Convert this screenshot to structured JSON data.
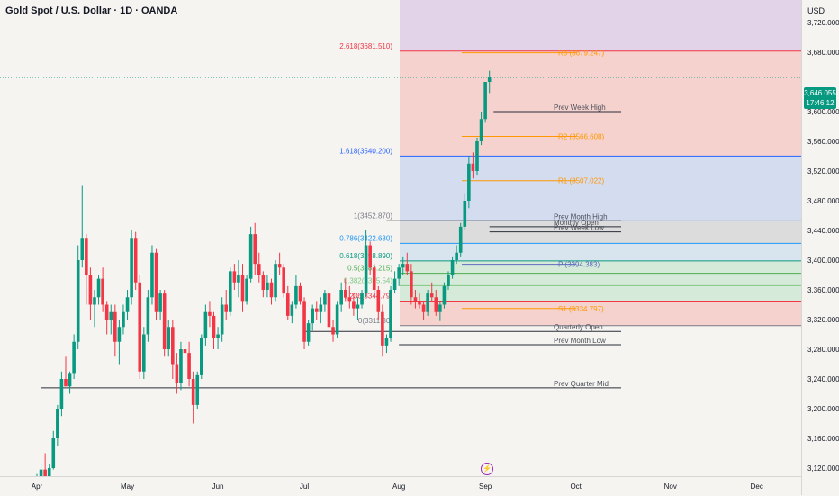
{
  "title": "Gold Spot / U.S. Dollar · 1D · OANDA",
  "currency": "USD",
  "price_badge": {
    "price": "3,646.055",
    "countdown": "17:46:12"
  },
  "colors": {
    "up": "#089981",
    "down": "#f23645",
    "purple_zone": "#e2d3e8",
    "red_zone": "#f5d2cd",
    "blue_zone": "#d4dcf0",
    "gray_zone": "#dcdcdc",
    "green_zone": "#d6ead9",
    "lightgray": "#e4e4e4"
  },
  "chart_data": {
    "type": "candlestick",
    "title": "Gold Spot / U.S. Dollar · 1D · OANDA",
    "ylim": [
      3100,
      3760
    ],
    "yticks": [
      {
        "v": 3720,
        "label": "3,720.000"
      },
      {
        "v": 3680,
        "label": "3,680.000"
      },
      {
        "v": 3600,
        "label": "3,600.000"
      },
      {
        "v": 3560,
        "label": "3,560.000"
      },
      {
        "v": 3520,
        "label": "3,520.000"
      },
      {
        "v": 3480,
        "label": "3,480.000"
      },
      {
        "v": 3440,
        "label": "3,440.000"
      },
      {
        "v": 3400,
        "label": "3,400.000"
      },
      {
        "v": 3360,
        "label": "3,360.000"
      },
      {
        "v": 3320,
        "label": "3,320.000"
      },
      {
        "v": 3280,
        "label": "3,280.000"
      },
      {
        "v": 3240,
        "label": "3,240.000"
      },
      {
        "v": 3200,
        "label": "3,200.000"
      },
      {
        "v": 3160,
        "label": "3,160.000"
      },
      {
        "v": 3120,
        "label": "3,120.000"
      }
    ],
    "xticks": [
      {
        "i": 0,
        "label": "Apr"
      },
      {
        "i": 22,
        "label": "May"
      },
      {
        "i": 44,
        "label": "Jun"
      },
      {
        "i": 65,
        "label": "Jul"
      },
      {
        "i": 88,
        "label": "Aug"
      },
      {
        "i": 109,
        "label": "Sep"
      },
      {
        "i": 131,
        "label": "Oct"
      },
      {
        "i": 154,
        "label": "Nov"
      },
      {
        "i": 175,
        "label": "Dec"
      }
    ],
    "candles": [
      [
        3087,
        3112,
        3080,
        3108
      ],
      [
        3108,
        3125,
        3100,
        3118
      ],
      [
        3118,
        3140,
        3110,
        3105
      ],
      [
        3105,
        3125,
        3098,
        3120
      ],
      [
        3120,
        3170,
        3118,
        3160
      ],
      [
        3160,
        3205,
        3150,
        3200
      ],
      [
        3200,
        3250,
        3190,
        3240
      ],
      [
        3240,
        3270,
        3230,
        3230
      ],
      [
        3230,
        3250,
        3220,
        3248
      ],
      [
        3248,
        3300,
        3240,
        3290
      ],
      [
        3290,
        3420,
        3280,
        3400
      ],
      [
        3400,
        3500,
        3390,
        3430
      ],
      [
        3430,
        3435,
        3340,
        3380
      ],
      [
        3380,
        3390,
        3320,
        3340
      ],
      [
        3340,
        3360,
        3310,
        3350
      ],
      [
        3350,
        3380,
        3340,
        3375
      ],
      [
        3375,
        3390,
        3330,
        3340
      ],
      [
        3340,
        3345,
        3300,
        3320
      ],
      [
        3320,
        3340,
        3300,
        3330
      ],
      [
        3330,
        3340,
        3270,
        3290
      ],
      [
        3290,
        3320,
        3260,
        3310
      ],
      [
        3310,
        3340,
        3300,
        3330
      ],
      [
        3330,
        3360,
        3320,
        3350
      ],
      [
        3350,
        3440,
        3340,
        3430
      ],
      [
        3430,
        3438,
        3360,
        3370
      ],
      [
        3370,
        3380,
        3240,
        3250
      ],
      [
        3250,
        3310,
        3240,
        3300
      ],
      [
        3300,
        3360,
        3290,
        3350
      ],
      [
        3350,
        3420,
        3340,
        3410
      ],
      [
        3410,
        3415,
        3320,
        3330
      ],
      [
        3330,
        3360,
        3320,
        3355
      ],
      [
        3355,
        3360,
        3270,
        3280
      ],
      [
        3280,
        3320,
        3270,
        3310
      ],
      [
        3310,
        3320,
        3240,
        3260
      ],
      [
        3260,
        3275,
        3220,
        3235
      ],
      [
        3235,
        3290,
        3225,
        3280
      ],
      [
        3280,
        3300,
        3260,
        3275
      ],
      [
        3275,
        3290,
        3230,
        3240
      ],
      [
        3240,
        3250,
        3180,
        3205
      ],
      [
        3205,
        3250,
        3200,
        3245
      ],
      [
        3245,
        3300,
        3240,
        3295
      ],
      [
        3295,
        3340,
        3285,
        3330
      ],
      [
        3330,
        3345,
        3310,
        3325
      ],
      [
        3325,
        3330,
        3280,
        3295
      ],
      [
        3295,
        3310,
        3280,
        3300
      ],
      [
        3300,
        3350,
        3290,
        3340
      ],
      [
        3340,
        3360,
        3320,
        3330
      ],
      [
        3330,
        3390,
        3325,
        3385
      ],
      [
        3385,
        3395,
        3360,
        3370
      ],
      [
        3370,
        3400,
        3350,
        3380
      ],
      [
        3380,
        3395,
        3330,
        3345
      ],
      [
        3345,
        3380,
        3340,
        3375
      ],
      [
        3375,
        3445,
        3370,
        3435
      ],
      [
        3435,
        3450,
        3380,
        3395
      ],
      [
        3395,
        3410,
        3370,
        3380
      ],
      [
        3380,
        3385,
        3350,
        3360
      ],
      [
        3360,
        3380,
        3350,
        3370
      ],
      [
        3370,
        3375,
        3340,
        3350
      ],
      [
        3350,
        3400,
        3345,
        3395
      ],
      [
        3395,
        3410,
        3380,
        3390
      ],
      [
        3390,
        3395,
        3350,
        3355
      ],
      [
        3355,
        3365,
        3320,
        3325
      ],
      [
        3325,
        3345,
        3315,
        3340
      ],
      [
        3340,
        3380,
        3335,
        3365
      ],
      [
        3365,
        3370,
        3340,
        3345
      ],
      [
        3345,
        3350,
        3280,
        3290
      ],
      [
        3290,
        3320,
        3285,
        3315
      ],
      [
        3315,
        3340,
        3305,
        3335
      ],
      [
        3335,
        3345,
        3320,
        3330
      ],
      [
        3330,
        3350,
        3315,
        3340
      ],
      [
        3340,
        3360,
        3330,
        3355
      ],
      [
        3355,
        3365,
        3300,
        3310
      ],
      [
        3310,
        3320,
        3290,
        3300
      ],
      [
        3300,
        3345,
        3295,
        3340
      ],
      [
        3340,
        3370,
        3330,
        3360
      ],
      [
        3360,
        3375,
        3345,
        3350
      ],
      [
        3350,
        3365,
        3335,
        3345
      ],
      [
        3345,
        3355,
        3325,
        3335
      ],
      [
        3335,
        3350,
        3320,
        3340
      ],
      [
        3340,
        3360,
        3335,
        3355
      ],
      [
        3355,
        3440,
        3350,
        3420
      ],
      [
        3420,
        3425,
        3380,
        3390
      ],
      [
        3390,
        3395,
        3350,
        3360
      ],
      [
        3360,
        3365,
        3320,
        3330
      ],
      [
        3330,
        3340,
        3270,
        3285
      ],
      [
        3285,
        3300,
        3275,
        3295
      ],
      [
        3295,
        3365,
        3290,
        3360
      ],
      [
        3360,
        3385,
        3355,
        3375
      ],
      [
        3375,
        3395,
        3365,
        3390
      ],
      [
        3390,
        3405,
        3380,
        3395
      ],
      [
        3395,
        3410,
        3380,
        3385
      ],
      [
        3385,
        3395,
        3340,
        3350
      ],
      [
        3350,
        3360,
        3335,
        3345
      ],
      [
        3345,
        3355,
        3335,
        3340
      ],
      [
        3340,
        3345,
        3320,
        3330
      ],
      [
        3330,
        3360,
        3325,
        3355
      ],
      [
        3355,
        3370,
        3345,
        3350
      ],
      [
        3350,
        3360,
        3325,
        3330
      ],
      [
        3330,
        3345,
        3318,
        3340
      ],
      [
        3340,
        3370,
        3335,
        3365
      ],
      [
        3365,
        3385,
        3360,
        3380
      ],
      [
        3380,
        3405,
        3375,
        3400
      ],
      [
        3400,
        3420,
        3395,
        3410
      ],
      [
        3410,
        3450,
        3405,
        3445
      ],
      [
        3445,
        3490,
        3440,
        3480
      ],
      [
        3480,
        3540,
        3470,
        3530
      ],
      [
        3530,
        3545,
        3510,
        3520
      ],
      [
        3520,
        3565,
        3515,
        3560
      ],
      [
        3560,
        3600,
        3555,
        3590
      ],
      [
        3590,
        3640,
        3585,
        3640
      ],
      [
        3640,
        3655,
        3625,
        3646
      ]
    ],
    "fib_levels": [
      {
        "label": "2.618(3681.510)",
        "v": 3681.51,
        "color": "#f23645"
      },
      {
        "label": "1.618(3540.200)",
        "v": 3540.2,
        "color": "#2962ff"
      },
      {
        "label": "1(3452.870)",
        "v": 3452.87,
        "color": "#787b86"
      },
      {
        "label": "0.786(3422.630)",
        "v": 3422.63,
        "color": "#2196f3"
      },
      {
        "label": "0.618(3398.890)",
        "v": 3398.89,
        "color": "#089981"
      },
      {
        "label": "0.5(3382.215)",
        "v": 3382.215,
        "color": "#4caf50"
      },
      {
        "label": "0.382(3365.54)",
        "v": 3365.54,
        "color": "#81c784"
      },
      {
        "label": "0.236(3344.79)",
        "v": 3344.79,
        "color": "#f23645"
      },
      {
        "label": "0(3311.80)",
        "v": 3311.8,
        "color": "#787b86"
      }
    ],
    "pivots": [
      {
        "label": "R3 (3679.247)",
        "v": 3679.247,
        "color": "#ff9800"
      },
      {
        "label": "R2 (3566.608)",
        "v": 3566.608,
        "color": "#ff9800"
      },
      {
        "label": "R1 (3507.022)",
        "v": 3507.022,
        "color": "#ff9800"
      },
      {
        "label": "P (3394.383)",
        "v": 3394.383,
        "color": "#5c6bc0"
      },
      {
        "label": "S1 (3334.797)",
        "v": 3334.797,
        "color": "#ff9800"
      }
    ],
    "ref_lines": [
      {
        "label": "Prev Week High",
        "v": 3600,
        "x0": 111
      },
      {
        "label": "Prev Month High",
        "v": 3453,
        "x0": 85
      },
      {
        "label": "Monthly Open",
        "v": 3445,
        "x0": 110
      },
      {
        "label": "Prev Week Low",
        "v": 3438,
        "x0": 110
      },
      {
        "label": "Quarterly Open",
        "v": 3304,
        "x0": 65
      },
      {
        "label": "Prev Month Low",
        "v": 3286,
        "x0": 88
      },
      {
        "label": "Prev Quarter Mid",
        "v": 3228,
        "x0": 1
      }
    ]
  }
}
